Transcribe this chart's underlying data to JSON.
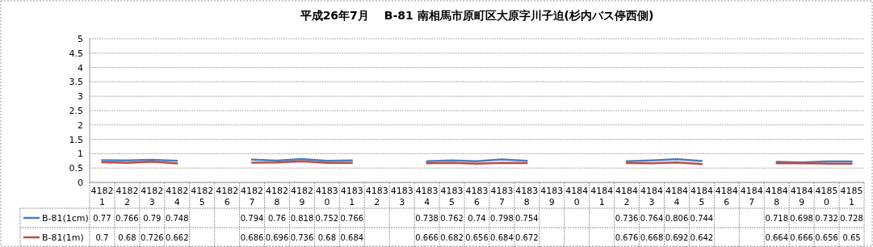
{
  "chart_data": {
    "type": "line",
    "title": "平成26年7月　 B-81 南相馬市原町区大原字川子迫(杉内バス停西側)",
    "categories": [
      "41821",
      "41822",
      "41823",
      "41824",
      "41825",
      "41826",
      "41827",
      "41828",
      "41829",
      "41830",
      "41831",
      "41832",
      "41833",
      "41834",
      "41835",
      "41836",
      "41837",
      "41838",
      "41839",
      "41840",
      "41841",
      "41842",
      "41843",
      "41844",
      "41845",
      "41846",
      "41847",
      "41848",
      "41849",
      "41850",
      "41851"
    ],
    "series": [
      {
        "name": "B-81(1cm)",
        "color": "#4a7ebb",
        "values": [
          0.77,
          0.766,
          0.79,
          0.748,
          null,
          null,
          0.794,
          0.76,
          0.818,
          0.752,
          0.766,
          null,
          null,
          0.738,
          0.762,
          0.74,
          0.798,
          0.754,
          null,
          null,
          null,
          0.736,
          0.764,
          0.806,
          0.744,
          null,
          null,
          0.718,
          0.698,
          0.732,
          0.728
        ]
      },
      {
        "name": "B-81(1m)",
        "color": "#be4b48",
        "values": [
          0.7,
          0.68,
          0.726,
          0.662,
          null,
          null,
          0.686,
          0.696,
          0.736,
          0.68,
          0.684,
          null,
          null,
          0.666,
          0.682,
          0.656,
          0.684,
          0.672,
          null,
          null,
          null,
          0.676,
          0.668,
          0.692,
          0.642,
          null,
          null,
          0.664,
          0.666,
          0.656,
          0.65
        ]
      }
    ],
    "ylim": [
      0,
      5
    ],
    "yticks": [
      0,
      0.5,
      1,
      1.5,
      2,
      2.5,
      3,
      3.5,
      4,
      4.5,
      5
    ],
    "grid": "y",
    "legend": "bottom",
    "data_labels": true,
    "marker": "none",
    "line_style": "solid"
  }
}
